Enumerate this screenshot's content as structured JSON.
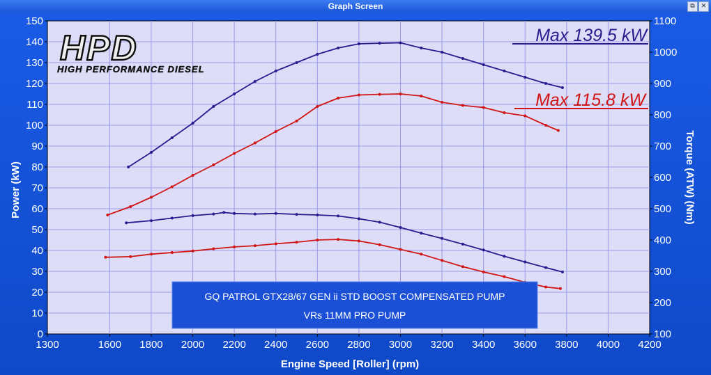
{
  "window": {
    "title": "Graph Screen",
    "restore_icon": "restore-icon",
    "close_icon": "close-icon"
  },
  "logo": {
    "mark": "HPD",
    "tagline": "HIGH PERFORMANCE DIESEL"
  },
  "annotations": {
    "max_top": "Max 139.5 kW",
    "max_bottom": "Max 115.8 kW",
    "info_line1": "GQ PATROL GTX28/67 GEN ii STD BOOST COMPENSATED PUMP",
    "info_line2": "VRs 11MM PRO PUMP"
  },
  "colors": {
    "background": "#1452d8",
    "plot": "#ddddf8",
    "grid": "#9a9ae8",
    "blue_series": "#2b1b8f",
    "red_series": "#d01515",
    "info_box": "#1b4fd6"
  },
  "chart_data": {
    "type": "line",
    "xlabel": "Engine Speed [Roller] (rpm)",
    "ylabel_left": "Power (kW)",
    "ylabel_right": "Torque (ATW) (Nm)",
    "xlim": [
      1300,
      4200
    ],
    "ylim_left": [
      0,
      150
    ],
    "ylim_right": [
      100,
      1100
    ],
    "x_ticks": [
      1300,
      1600,
      1800,
      2000,
      2200,
      2400,
      2600,
      2800,
      3000,
      3200,
      3400,
      3600,
      3800,
      4000,
      4200
    ],
    "y_left_ticks": [
      0,
      10,
      20,
      30,
      40,
      50,
      60,
      70,
      80,
      90,
      100,
      110,
      120,
      130,
      140,
      150
    ],
    "y_right_ticks": [
      100,
      200,
      300,
      400,
      500,
      600,
      700,
      800,
      900,
      1000,
      1100
    ],
    "grid": true,
    "series": [
      {
        "axis": "left",
        "color": "#2b1b8f",
        "x": [
          1690,
          1800,
          1900,
          2000,
          2100,
          2200,
          2300,
          2400,
          2500,
          2600,
          2700,
          2800,
          2900,
          3000,
          3100,
          3200,
          3300,
          3400,
          3500,
          3600,
          3700,
          3780
        ],
        "y": [
          80,
          87,
          94,
          101,
          109,
          115,
          121,
          126,
          130,
          134,
          137,
          139,
          139.3,
          139.5,
          137,
          135,
          132,
          129,
          126,
          123,
          120,
          118
        ]
      },
      {
        "axis": "left",
        "color": "#d01515",
        "x": [
          1590,
          1700,
          1800,
          1900,
          2000,
          2100,
          2200,
          2300,
          2400,
          2500,
          2600,
          2700,
          2800,
          2900,
          3000,
          3100,
          3200,
          3300,
          3400,
          3500,
          3600,
          3700,
          3760
        ],
        "y": [
          57,
          61,
          65.5,
          70.5,
          76,
          81,
          86.5,
          91.5,
          97,
          102,
          109,
          113,
          114.5,
          114.8,
          115,
          114,
          111,
          109.5,
          108.5,
          106,
          104.5,
          100,
          97.5
        ]
      },
      {
        "axis": "right",
        "color": "#2b1b8f",
        "x": [
          1680,
          1800,
          1900,
          2000,
          2100,
          2150,
          2200,
          2300,
          2400,
          2500,
          2600,
          2700,
          2800,
          2900,
          3000,
          3100,
          3200,
          3300,
          3400,
          3500,
          3600,
          3700,
          3780
        ],
        "y": [
          455,
          462,
          470,
          478,
          483,
          488,
          485,
          483,
          485,
          482,
          480,
          477,
          468,
          457,
          440,
          422,
          405,
          387,
          368,
          348,
          330,
          312,
          298
        ]
      },
      {
        "axis": "right",
        "color": "#d01515",
        "x": [
          1580,
          1700,
          1800,
          1900,
          2000,
          2100,
          2200,
          2300,
          2400,
          2500,
          2600,
          2700,
          2800,
          2900,
          3000,
          3100,
          3200,
          3300,
          3400,
          3500,
          3600,
          3700,
          3770
        ],
        "y": [
          345,
          347,
          355,
          360,
          365,
          372,
          378,
          382,
          388,
          393,
          400,
          402,
          397,
          385,
          370,
          355,
          335,
          315,
          298,
          283,
          265,
          250,
          245
        ]
      }
    ]
  }
}
